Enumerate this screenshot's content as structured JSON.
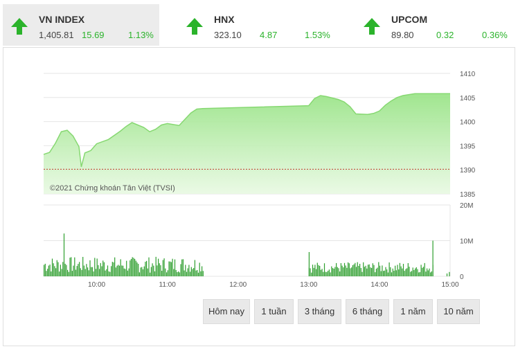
{
  "indices": [
    {
      "name": "VN INDEX",
      "price": "1,405.81",
      "change": "15.69",
      "percent": "1.13%",
      "direction": "up",
      "active": true
    },
    {
      "name": "HNX",
      "price": "323.10",
      "change": "4.87",
      "percent": "1.53%",
      "direction": "up",
      "active": false
    },
    {
      "name": "UPCOM",
      "price": "89.80",
      "change": "0.32",
      "percent": "0.36%",
      "direction": "up",
      "active": false
    }
  ],
  "colors": {
    "up": "#2bb32b",
    "area": "#b6eaa4",
    "line": "#86d871",
    "reference": "#c0392b",
    "volume": "#2e9e2e"
  },
  "chart": {
    "watermark": "©2021 Chứng khoán Tân Việt (TVSI)",
    "price_ticks": [
      "1410",
      "1405",
      "1400",
      "1395",
      "1390",
      "1385"
    ],
    "volume_ticks": [
      "20M",
      "10M",
      "0"
    ],
    "time_ticks": [
      "10:00",
      "11:00",
      "12:00",
      "13:00",
      "14:00",
      "15:00"
    ]
  },
  "chart_data": {
    "type": "line",
    "series": [
      {
        "values": [
          {
            "x": "09:15",
            "y": 1393.2
          },
          {
            "x": "09:20",
            "y": 1393.6
          },
          {
            "x": "09:25",
            "y": 1395.5
          },
          {
            "x": "09:30",
            "y": 1397.9
          },
          {
            "x": "09:35",
            "y": 1398.2
          },
          {
            "x": "09:40",
            "y": 1397.0
          },
          {
            "x": "09:45",
            "y": 1394.8
          },
          {
            "x": "09:47",
            "y": 1390.6
          },
          {
            "x": "09:50",
            "y": 1393.5
          },
          {
            "x": "09:55",
            "y": 1394.0
          },
          {
            "x": "10:00",
            "y": 1395.4
          },
          {
            "x": "10:10",
            "y": 1396.3
          },
          {
            "x": "10:20",
            "y": 1398.0
          },
          {
            "x": "10:25",
            "y": 1399.0
          },
          {
            "x": "10:30",
            "y": 1399.8
          },
          {
            "x": "10:40",
            "y": 1398.8
          },
          {
            "x": "10:45",
            "y": 1397.9
          },
          {
            "x": "10:50",
            "y": 1398.4
          },
          {
            "x": "10:55",
            "y": 1399.3
          },
          {
            "x": "11:00",
            "y": 1399.6
          },
          {
            "x": "11:10",
            "y": 1399.2
          },
          {
            "x": "11:15",
            "y": 1400.5
          },
          {
            "x": "11:20",
            "y": 1401.8
          },
          {
            "x": "11:25",
            "y": 1402.6
          },
          {
            "x": "11:30",
            "y": 1402.7
          },
          {
            "x": "13:00",
            "y": 1403.3
          },
          {
            "x": "13:05",
            "y": 1404.8
          },
          {
            "x": "13:10",
            "y": 1405.4
          },
          {
            "x": "13:15",
            "y": 1405.2
          },
          {
            "x": "13:25",
            "y": 1404.6
          },
          {
            "x": "13:30",
            "y": 1404.1
          },
          {
            "x": "13:35",
            "y": 1403.1
          },
          {
            "x": "13:40",
            "y": 1401.6
          },
          {
            "x": "13:50",
            "y": 1401.5
          },
          {
            "x": "13:55",
            "y": 1401.7
          },
          {
            "x": "14:00",
            "y": 1402.2
          },
          {
            "x": "14:05",
            "y": 1403.4
          },
          {
            "x": "14:10",
            "y": 1404.3
          },
          {
            "x": "14:15",
            "y": 1405.0
          },
          {
            "x": "14:20",
            "y": 1405.4
          },
          {
            "x": "14:30",
            "y": 1405.8
          },
          {
            "x": "14:45",
            "y": 1405.8
          },
          {
            "x": "15:00",
            "y": 1405.8
          }
        ]
      }
    ],
    "reference_line": 1390.12,
    "ylim": [
      1385,
      1410
    ],
    "x_range": [
      "09:15",
      "15:00"
    ],
    "volume": {
      "ylim": [
        0,
        20
      ],
      "unit": "M",
      "morning": {
        "start": "09:15",
        "end": "11:30",
        "typical_min": 1,
        "typical_max": 5.5,
        "peak": {
          "x": "09:32",
          "y": 12.0
        }
      },
      "afternoon": {
        "start": "13:00",
        "end": "14:45",
        "typical_min": 1,
        "typical_max": 4,
        "peak": {
          "x": "13:00",
          "y": 6.8
        }
      },
      "close_spike": {
        "x": "14:45",
        "y": 10.0
      }
    },
    "grid": true
  },
  "ranges": [
    "Hôm nay",
    "1 tuần",
    "3 tháng",
    "6 tháng",
    "1 năm",
    "10 năm"
  ]
}
